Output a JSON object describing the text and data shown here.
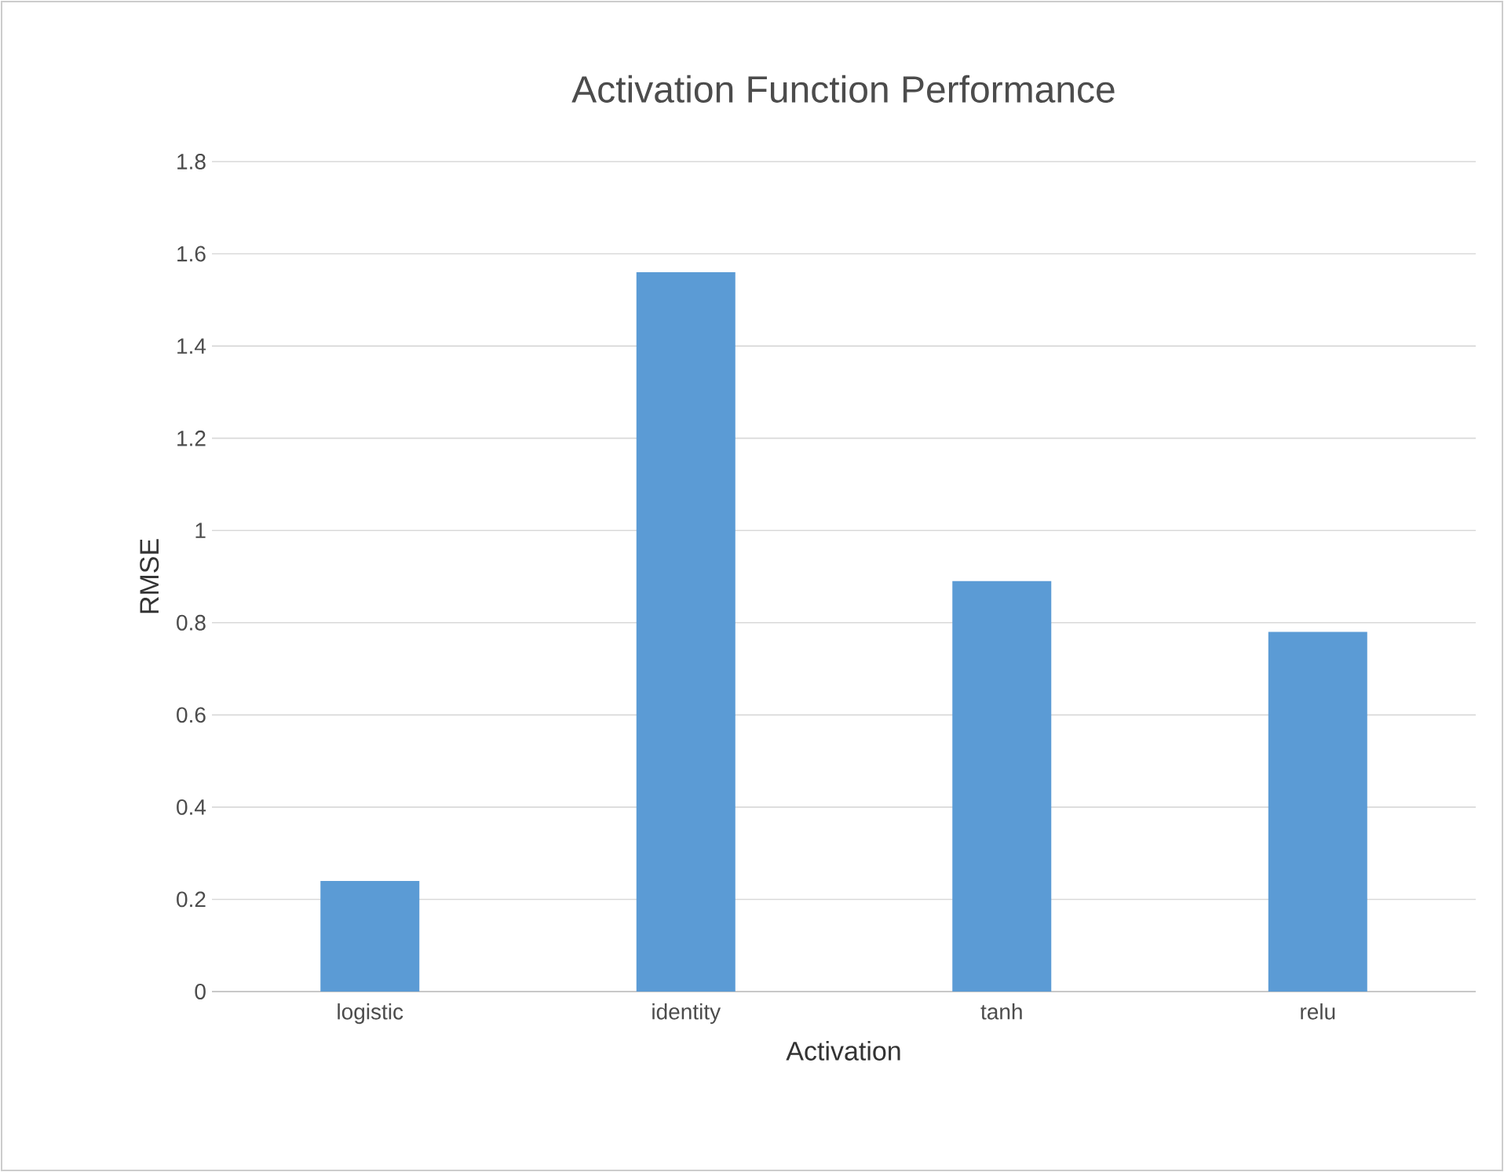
{
  "chart_data": {
    "type": "bar",
    "title": "Activation Function Performance",
    "xlabel": "Activation",
    "ylabel": "RMSE",
    "categories": [
      "logistic",
      "identity",
      "tanh",
      "relu"
    ],
    "values": [
      0.24,
      1.56,
      0.89,
      0.78
    ],
    "color": "#5b9bd5",
    "ylim": [
      0,
      1.8
    ],
    "yticks": [
      0,
      0.2,
      0.4,
      0.6,
      0.8,
      1,
      1.2,
      1.4,
      1.6,
      1.8
    ],
    "grid": "y"
  }
}
